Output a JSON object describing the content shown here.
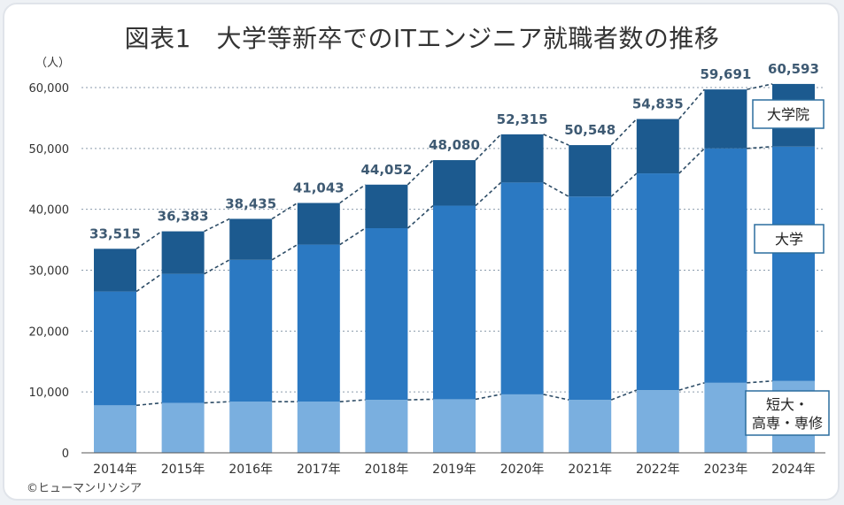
{
  "title": "図表1　大学等新卒でのITエンジニア就職者数の推移",
  "unit": "（人）",
  "copyright": "©ヒューマンリソシア",
  "colors": {
    "grad_school": "#1c5a8f",
    "university": "#2b79c2",
    "junior": "#7aafdf",
    "connector": "#2d4c66",
    "legend_border": "#2b6d9e"
  },
  "chart_data": {
    "type": "bar",
    "stacked": true,
    "categories": [
      "2014年",
      "2015年",
      "2016年",
      "2017年",
      "2018年",
      "2019年",
      "2020年",
      "2021年",
      "2022年",
      "2023年",
      "2024年"
    ],
    "series": [
      {
        "name": "短大・高専・専修",
        "values": [
          7800,
          8200,
          8400,
          8400,
          8700,
          8800,
          9600,
          8700,
          10300,
          11500,
          11800
        ]
      },
      {
        "name": "大学",
        "values": [
          18700,
          21200,
          23300,
          25800,
          28200,
          31800,
          34800,
          33400,
          35600,
          38500,
          38500
        ]
      },
      {
        "name": "大学院",
        "values": [
          7015,
          6983,
          6735,
          6843,
          7152,
          7480,
          7915,
          8448,
          8935,
          9691,
          10293
        ]
      }
    ],
    "totals": [
      "33,515",
      "36,383",
      "38,435",
      "41,043",
      "44,052",
      "48,080",
      "52,315",
      "50,548",
      "54,835",
      "59,691",
      "60,593"
    ],
    "total_values": [
      33515,
      36383,
      38435,
      41043,
      44052,
      48080,
      52315,
      50548,
      54835,
      59691,
      60593
    ],
    "ylim": [
      0,
      60000
    ],
    "yticks": [
      "0",
      "10,000",
      "20,000",
      "30,000",
      "40,000",
      "50,000",
      "60,000"
    ],
    "ytick_values": [
      0,
      10000,
      20000,
      30000,
      40000,
      50000,
      60000
    ],
    "grid": true,
    "legend": {
      "grad_school": "大学院",
      "university": "大学",
      "junior_line1": "短大・",
      "junior_line2": "高専・専修"
    }
  }
}
